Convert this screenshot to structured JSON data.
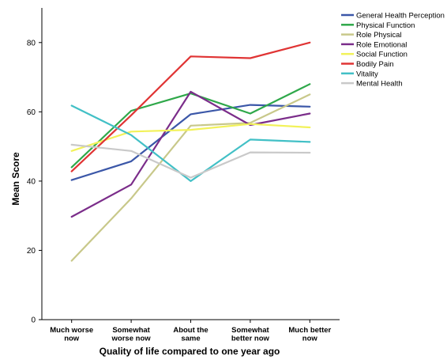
{
  "chart_data": {
    "type": "line",
    "xlabel": "Quality of life compared to one year ago",
    "ylabel": "Mean Score",
    "categories": [
      [
        "Much worse",
        "now"
      ],
      [
        "Somewhat",
        "worse now"
      ],
      [
        "About the",
        "same"
      ],
      [
        "Somewhat",
        "better now"
      ],
      [
        "Much better",
        "now"
      ]
    ],
    "ylim": [
      0,
      90
    ],
    "yticks": [
      "0",
      "20",
      "40",
      "60",
      "80"
    ],
    "ytick_values": [
      0,
      20,
      40,
      60,
      80
    ],
    "grid": false,
    "legend_position": "top-right",
    "series": [
      {
        "name": "General Health Perception",
        "color": "#3b57a8",
        "values": [
          40.3,
          45.7,
          59.3,
          62.0,
          61.5
        ]
      },
      {
        "name": "Physical Function",
        "color": "#2fa84a",
        "values": [
          44.0,
          60.3,
          65.3,
          59.5,
          68.0
        ]
      },
      {
        "name": "Role Physical",
        "color": "#c8c88a",
        "values": [
          17.0,
          35.0,
          56.0,
          56.8,
          65.0
        ]
      },
      {
        "name": "Role Emotional",
        "color": "#7b2d8a",
        "values": [
          29.7,
          39.0,
          65.8,
          56.2,
          59.5
        ]
      },
      {
        "name": "Social Function",
        "color": "#f2f25a",
        "values": [
          48.7,
          54.3,
          54.8,
          56.5,
          55.5
        ]
      },
      {
        "name": "Bodily Pain",
        "color": "#e03434",
        "values": [
          42.8,
          59.0,
          76.0,
          75.5,
          80.0
        ]
      },
      {
        "name": "Vitality",
        "color": "#42c0c6",
        "values": [
          61.8,
          53.3,
          40.0,
          52.0,
          51.3
        ]
      },
      {
        "name": "Mental Health",
        "color": "#c9c9c9",
        "values": [
          50.5,
          48.7,
          41.0,
          48.3,
          48.2
        ]
      }
    ]
  }
}
